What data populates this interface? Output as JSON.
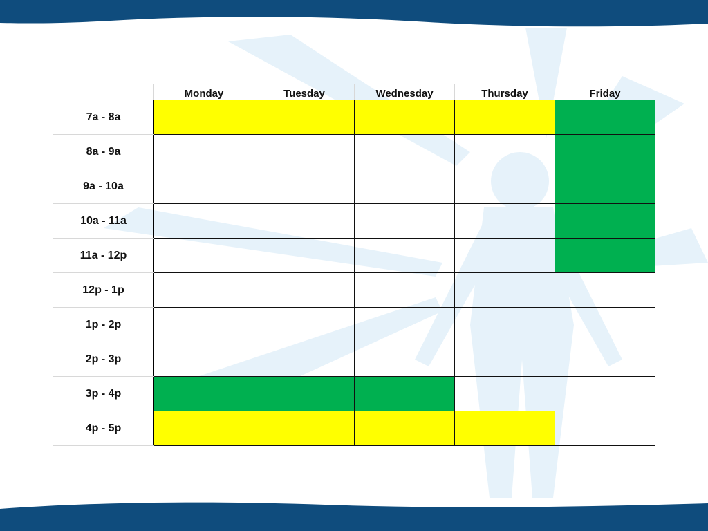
{
  "colors": {
    "banner": "#0f4c7d",
    "yellow": "#ffff00",
    "green": "#00b050",
    "watermark": "#e6f2fa"
  },
  "schedule": {
    "days": [
      "Monday",
      "Tuesday",
      "Wednesday",
      "Thursday",
      "Friday"
    ],
    "rows": [
      {
        "time": "7a - 8a",
        "cells": [
          "yellow",
          "yellow",
          "yellow",
          "yellow",
          "green"
        ]
      },
      {
        "time": "8a - 9a",
        "cells": [
          "empty",
          "empty",
          "empty",
          "empty",
          "green"
        ]
      },
      {
        "time": "9a - 10a",
        "cells": [
          "empty",
          "empty",
          "empty",
          "empty",
          "green"
        ]
      },
      {
        "time": "10a - 11a",
        "cells": [
          "empty",
          "empty",
          "empty",
          "empty",
          "green"
        ]
      },
      {
        "time": "11a - 12p",
        "cells": [
          "empty",
          "empty",
          "empty",
          "empty",
          "green"
        ]
      },
      {
        "time": "12p - 1p",
        "cells": [
          "empty",
          "empty",
          "empty",
          "empty",
          "empty"
        ]
      },
      {
        "time": "1p - 2p",
        "cells": [
          "empty",
          "empty",
          "empty",
          "empty",
          "empty"
        ]
      },
      {
        "time": "2p - 3p",
        "cells": [
          "empty",
          "empty",
          "empty",
          "empty",
          "empty"
        ]
      },
      {
        "time": "3p - 4p",
        "cells": [
          "green",
          "green",
          "green",
          "empty",
          "empty"
        ]
      },
      {
        "time": "4p - 5p",
        "cells": [
          "yellow",
          "yellow",
          "yellow",
          "yellow",
          "empty"
        ]
      }
    ]
  }
}
